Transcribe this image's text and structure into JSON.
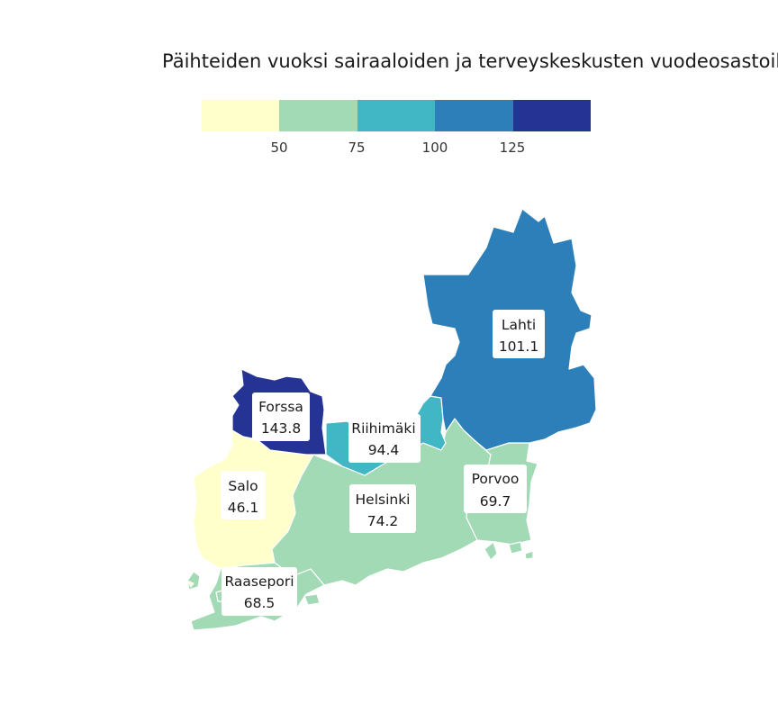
{
  "title": "Päihteiden vuoksi sairaaloiden ja terveyskeskusten vuodeosastoill",
  "legend": {
    "colors": [
      "#ffffcc",
      "#a1dab4",
      "#41b6c4",
      "#2c7fb8",
      "#253494"
    ],
    "ticks": [
      "50",
      "75",
      "100",
      "125"
    ]
  },
  "regions": [
    {
      "name": "Lahti",
      "value": "101.1",
      "color": "#2c7fb8"
    },
    {
      "name": "Forssa",
      "value": "143.8",
      "color": "#253494"
    },
    {
      "name": "Riihimäki",
      "value": "94.4",
      "color": "#41b6c4"
    },
    {
      "name": "Salo",
      "value": "46.1",
      "color": "#ffffcc"
    },
    {
      "name": "Helsinki",
      "value": "74.2",
      "color": "#a1dab4"
    },
    {
      "name": "Porvoo",
      "value": "69.7",
      "color": "#a1dab4"
    },
    {
      "name": "Raasepori",
      "value": "68.5",
      "color": "#a1dab4"
    }
  ]
}
